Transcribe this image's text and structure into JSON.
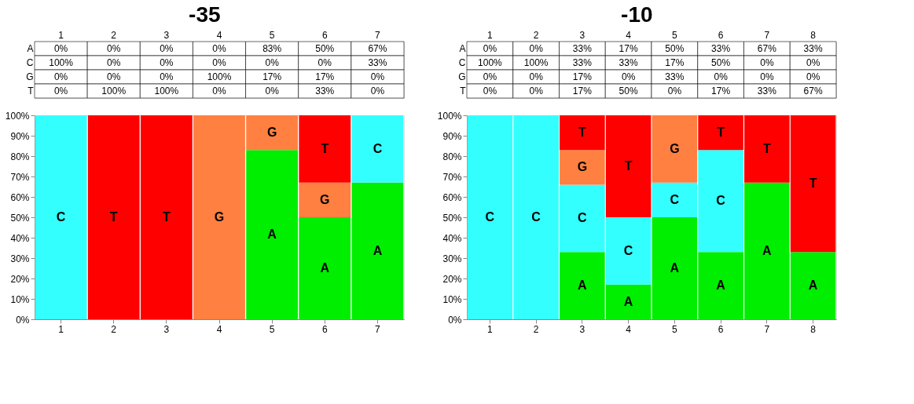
{
  "chart_data": [
    {
      "type": "bar",
      "title": "-35",
      "stacked": true,
      "categories": [
        "1",
        "2",
        "3",
        "4",
        "5",
        "6",
        "7"
      ],
      "ylim": [
        0,
        100
      ],
      "yticks": [
        {
          "value": 0,
          "label": "0%"
        },
        {
          "value": 10,
          "label": "10%"
        },
        {
          "value": 20,
          "label": "20%"
        },
        {
          "value": 30,
          "label": "30%"
        },
        {
          "value": 40,
          "label": "40%"
        },
        {
          "value": 50,
          "label": "50%"
        },
        {
          "value": 60,
          "label": "60%"
        },
        {
          "value": 70,
          "label": "70%"
        },
        {
          "value": 80,
          "label": "80%"
        },
        {
          "value": 90,
          "label": "90%"
        },
        {
          "value": 100,
          "label": "100%"
        }
      ],
      "series": [
        {
          "name": "A",
          "color": "#00ee00",
          "values": [
            0,
            0,
            0,
            0,
            83,
            50,
            67
          ],
          "value_labels": [
            "0%",
            "0%",
            "0%",
            "0%",
            "83%",
            "50%",
            "67%"
          ]
        },
        {
          "name": "C",
          "color": "#33ffff",
          "values": [
            100,
            0,
            0,
            0,
            0,
            0,
            33
          ],
          "value_labels": [
            "100%",
            "0%",
            "0%",
            "0%",
            "0%",
            "0%",
            "33%"
          ]
        },
        {
          "name": "G",
          "color": "#ff8040",
          "values": [
            0,
            0,
            0,
            100,
            17,
            17,
            0
          ],
          "value_labels": [
            "0%",
            "0%",
            "0%",
            "100%",
            "17%",
            "17%",
            "0%"
          ]
        },
        {
          "name": "T",
          "color": "#ff0000",
          "values": [
            0,
            100,
            100,
            0,
            0,
            33,
            0
          ],
          "value_labels": [
            "0%",
            "100%",
            "100%",
            "0%",
            "0%",
            "33%",
            "0%"
          ]
        }
      ]
    },
    {
      "type": "bar",
      "title": "-10",
      "stacked": true,
      "categories": [
        "1",
        "2",
        "3",
        "4",
        "5",
        "6",
        "7",
        "8"
      ],
      "ylim": [
        0,
        100
      ],
      "yticks": [
        {
          "value": 0,
          "label": "0%"
        },
        {
          "value": 10,
          "label": "10%"
        },
        {
          "value": 20,
          "label": "20%"
        },
        {
          "value": 30,
          "label": "30%"
        },
        {
          "value": 40,
          "label": "40%"
        },
        {
          "value": 50,
          "label": "50%"
        },
        {
          "value": 60,
          "label": "60%"
        },
        {
          "value": 70,
          "label": "70%"
        },
        {
          "value": 80,
          "label": "80%"
        },
        {
          "value": 90,
          "label": "90%"
        },
        {
          "value": 100,
          "label": "100%"
        }
      ],
      "series": [
        {
          "name": "A",
          "color": "#00ee00",
          "values": [
            0,
            0,
            33,
            17,
            50,
            33,
            67,
            33
          ],
          "value_labels": [
            "0%",
            "0%",
            "33%",
            "17%",
            "50%",
            "33%",
            "67%",
            "33%"
          ]
        },
        {
          "name": "C",
          "color": "#33ffff",
          "values": [
            100,
            100,
            33,
            33,
            17,
            50,
            0,
            0
          ],
          "value_labels": [
            "100%",
            "100%",
            "33%",
            "33%",
            "17%",
            "50%",
            "0%",
            "0%"
          ]
        },
        {
          "name": "G",
          "color": "#ff8040",
          "values": [
            0,
            0,
            17,
            0,
            33,
            0,
            0,
            0
          ],
          "value_labels": [
            "0%",
            "0%",
            "17%",
            "0%",
            "33%",
            "0%",
            "0%",
            "0%"
          ]
        },
        {
          "name": "T",
          "color": "#ff0000",
          "values": [
            0,
            0,
            17,
            50,
            0,
            17,
            33,
            67
          ],
          "value_labels": [
            "0%",
            "0%",
            "17%",
            "50%",
            "0%",
            "17%",
            "33%",
            "67%"
          ]
        }
      ]
    }
  ]
}
